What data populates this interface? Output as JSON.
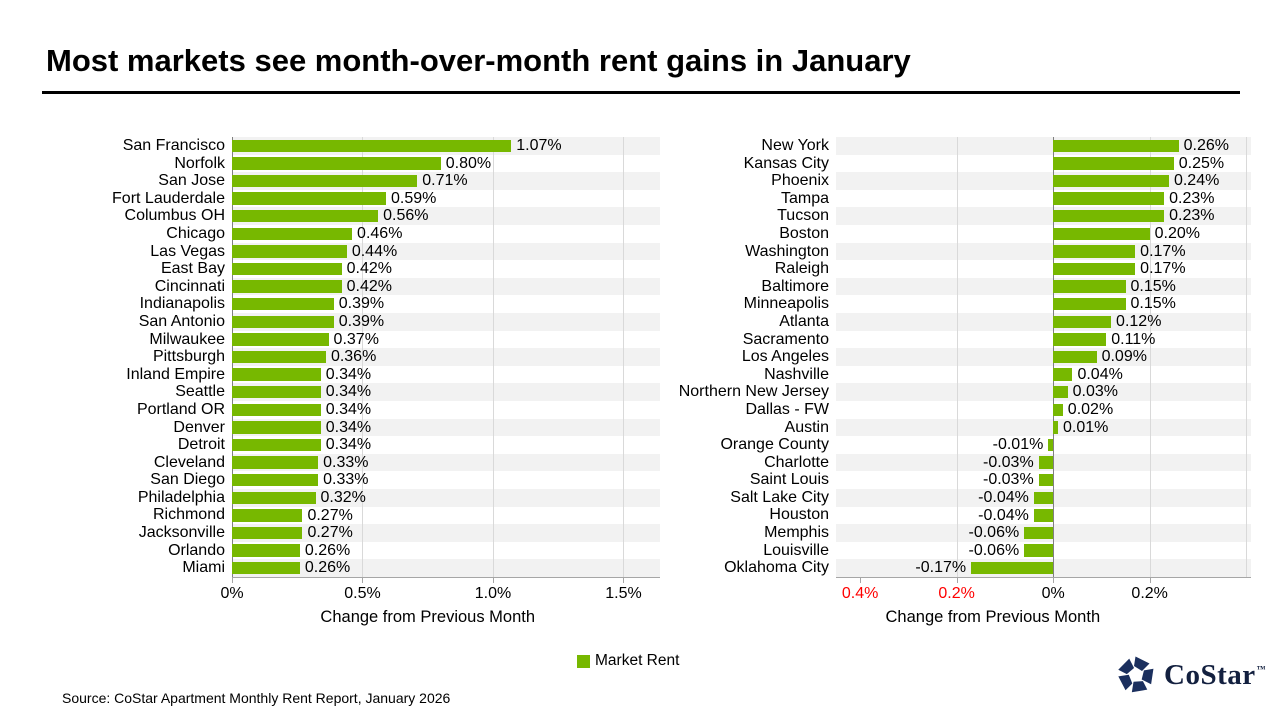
{
  "title": "Most markets see month-over-month rent gains in January",
  "legend": {
    "label": "Market Rent"
  },
  "source": "Source: CoStar Apartment Monthly Rent Report, January 2026",
  "logo": {
    "text": "CoStar",
    "tm": "™"
  },
  "colors": {
    "bar": "#77B800",
    "stripe": "#F2F2F2",
    "gridline": "#D9D9D9",
    "axis": "#A6A6A6",
    "negative_tick_label": "#FF0000",
    "logo_navy": "#1B2F5E"
  },
  "chart_data": [
    {
      "type": "bar",
      "orientation": "horizontal",
      "series_name": "Market Rent",
      "xlabel": "Change from Previous Month",
      "xlim": [
        0,
        1.64
      ],
      "categories": [
        "San Francisco",
        "Norfolk",
        "San Jose",
        "Fort Lauderdale",
        "Columbus OH",
        "Chicago",
        "Las Vegas",
        "East Bay",
        "Cincinnati",
        "Indianapolis",
        "San Antonio",
        "Milwaukee",
        "Pittsburgh",
        "Inland Empire",
        "Seattle",
        "Portland OR",
        "Denver",
        "Detroit",
        "Cleveland",
        "San Diego",
        "Philadelphia",
        "Richmond",
        "Jacksonville",
        "Orlando",
        "Miami"
      ],
      "values": [
        1.07,
        0.8,
        0.71,
        0.59,
        0.56,
        0.46,
        0.44,
        0.42,
        0.42,
        0.39,
        0.39,
        0.37,
        0.36,
        0.34,
        0.34,
        0.34,
        0.34,
        0.34,
        0.33,
        0.33,
        0.32,
        0.27,
        0.27,
        0.26,
        0.26
      ],
      "labels": [
        "1.07%",
        "0.80%",
        "0.71%",
        "0.59%",
        "0.56%",
        "0.46%",
        "0.44%",
        "0.42%",
        "0.42%",
        "0.39%",
        "0.39%",
        "0.37%",
        "0.36%",
        "0.34%",
        "0.34%",
        "0.34%",
        "0.34%",
        "0.34%",
        "0.33%",
        "0.33%",
        "0.32%",
        "0.27%",
        "0.27%",
        "0.26%",
        "0.26%"
      ],
      "ticks": [
        {
          "value": 0,
          "label": "0%",
          "color": "#000000"
        },
        {
          "value": 0.5,
          "label": "0.5%",
          "color": "#000000"
        },
        {
          "value": 1.0,
          "label": "1.0%",
          "color": "#000000"
        },
        {
          "value": 1.5,
          "label": "1.5%",
          "color": "#000000"
        }
      ],
      "gridlines": [
        0.5,
        1.0,
        1.5
      ]
    },
    {
      "type": "bar",
      "orientation": "horizontal",
      "series_name": "Market Rent",
      "xlabel": "Change from Previous Month",
      "xlim": [
        -0.45,
        0.41
      ],
      "categories": [
        "New York",
        "Kansas City",
        "Phoenix",
        "Tampa",
        "Tucson",
        "Boston",
        "Washington",
        "Raleigh",
        "Baltimore",
        "Minneapolis",
        "Atlanta",
        "Sacramento",
        "Los Angeles",
        "Nashville",
        "Northern New Jersey",
        "Dallas - FW",
        "Austin",
        "Orange County",
        "Charlotte",
        "Saint Louis",
        "Salt Lake City",
        "Houston",
        "Memphis",
        "Louisville",
        "Oklahoma City"
      ],
      "values": [
        0.26,
        0.25,
        0.24,
        0.23,
        0.23,
        0.2,
        0.17,
        0.17,
        0.15,
        0.15,
        0.12,
        0.11,
        0.09,
        0.04,
        0.03,
        0.02,
        0.01,
        -0.01,
        -0.03,
        -0.03,
        -0.04,
        -0.04,
        -0.06,
        -0.06,
        -0.17
      ],
      "labels": [
        "0.26%",
        "0.25%",
        "0.24%",
        "0.23%",
        "0.23%",
        "0.20%",
        "0.17%",
        "0.17%",
        "0.15%",
        "0.15%",
        "0.12%",
        "0.11%",
        "0.09%",
        "0.04%",
        "0.03%",
        "0.02%",
        "0.01%",
        "-0.01%",
        "-0.03%",
        "-0.03%",
        "-0.04%",
        "-0.04%",
        "-0.06%",
        "-0.06%",
        "-0.17%"
      ],
      "ticks": [
        {
          "value": -0.4,
          "label": "0.4%",
          "color": "#FF0000"
        },
        {
          "value": -0.2,
          "label": "0.2%",
          "color": "#FF0000"
        },
        {
          "value": 0,
          "label": "0%",
          "color": "#000000"
        },
        {
          "value": 0.2,
          "label": "0.2%",
          "color": "#000000"
        }
      ],
      "gridlines": [
        -0.2,
        0.2,
        0.4
      ]
    }
  ]
}
